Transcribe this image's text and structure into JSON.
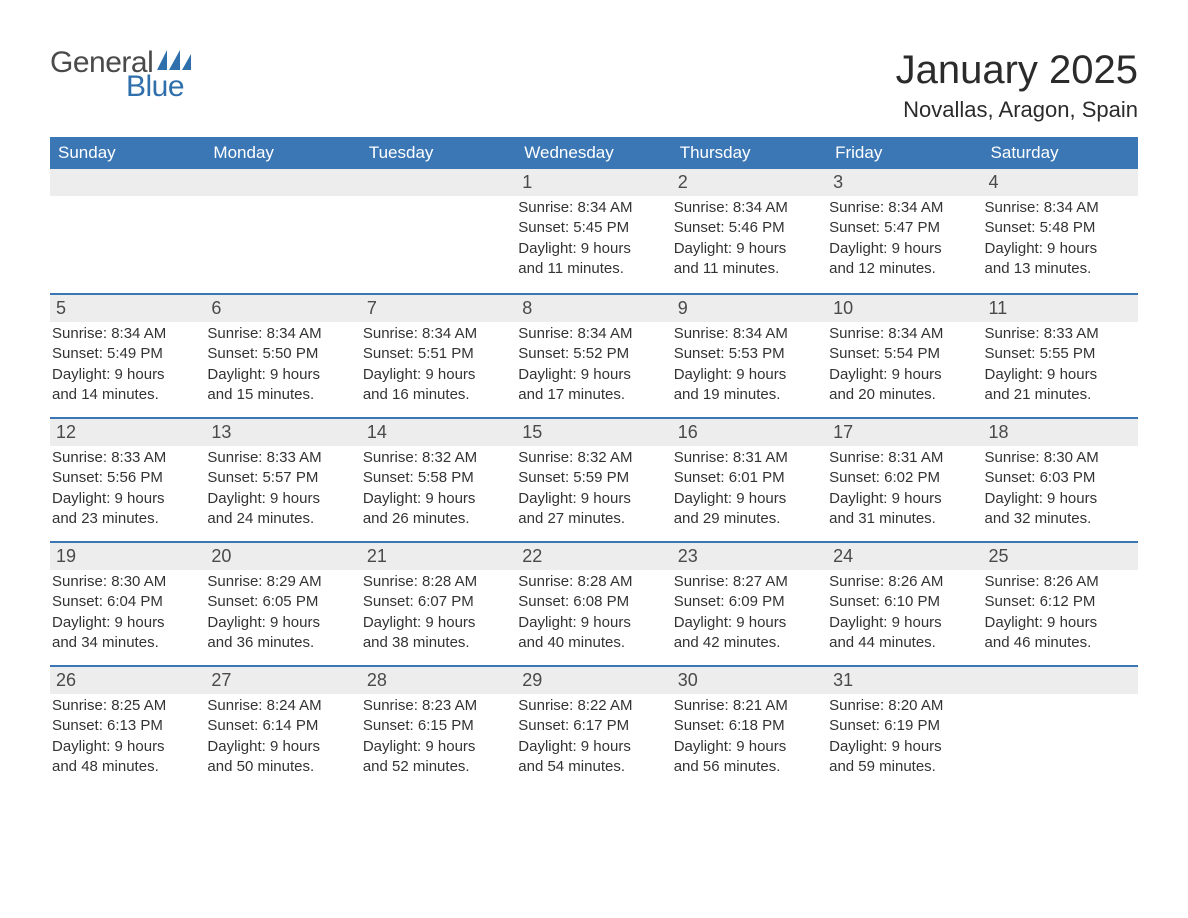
{
  "logo": {
    "general": "General",
    "blue": "Blue",
    "flag_color": "#2f6fab"
  },
  "title": "January 2025",
  "subtitle": "Novallas, Aragon, Spain",
  "colors": {
    "header_bg": "#3b77b5",
    "header_text": "#ffffff",
    "daynum_bg": "#ededed",
    "day_border": "#3b77b5",
    "body_text": "#333333",
    "page_bg": "#ffffff"
  },
  "columns": [
    "Sunday",
    "Monday",
    "Tuesday",
    "Wednesday",
    "Thursday",
    "Friday",
    "Saturday"
  ],
  "weeks": [
    [
      null,
      null,
      null,
      {
        "n": "1",
        "sunrise": "Sunrise: 8:34 AM",
        "sunset": "Sunset: 5:45 PM",
        "day1": "Daylight: 9 hours",
        "day2": "and 11 minutes."
      },
      {
        "n": "2",
        "sunrise": "Sunrise: 8:34 AM",
        "sunset": "Sunset: 5:46 PM",
        "day1": "Daylight: 9 hours",
        "day2": "and 11 minutes."
      },
      {
        "n": "3",
        "sunrise": "Sunrise: 8:34 AM",
        "sunset": "Sunset: 5:47 PM",
        "day1": "Daylight: 9 hours",
        "day2": "and 12 minutes."
      },
      {
        "n": "4",
        "sunrise": "Sunrise: 8:34 AM",
        "sunset": "Sunset: 5:48 PM",
        "day1": "Daylight: 9 hours",
        "day2": "and 13 minutes."
      }
    ],
    [
      {
        "n": "5",
        "sunrise": "Sunrise: 8:34 AM",
        "sunset": "Sunset: 5:49 PM",
        "day1": "Daylight: 9 hours",
        "day2": "and 14 minutes."
      },
      {
        "n": "6",
        "sunrise": "Sunrise: 8:34 AM",
        "sunset": "Sunset: 5:50 PM",
        "day1": "Daylight: 9 hours",
        "day2": "and 15 minutes."
      },
      {
        "n": "7",
        "sunrise": "Sunrise: 8:34 AM",
        "sunset": "Sunset: 5:51 PM",
        "day1": "Daylight: 9 hours",
        "day2": "and 16 minutes."
      },
      {
        "n": "8",
        "sunrise": "Sunrise: 8:34 AM",
        "sunset": "Sunset: 5:52 PM",
        "day1": "Daylight: 9 hours",
        "day2": "and 17 minutes."
      },
      {
        "n": "9",
        "sunrise": "Sunrise: 8:34 AM",
        "sunset": "Sunset: 5:53 PM",
        "day1": "Daylight: 9 hours",
        "day2": "and 19 minutes."
      },
      {
        "n": "10",
        "sunrise": "Sunrise: 8:34 AM",
        "sunset": "Sunset: 5:54 PM",
        "day1": "Daylight: 9 hours",
        "day2": "and 20 minutes."
      },
      {
        "n": "11",
        "sunrise": "Sunrise: 8:33 AM",
        "sunset": "Sunset: 5:55 PM",
        "day1": "Daylight: 9 hours",
        "day2": "and 21 minutes."
      }
    ],
    [
      {
        "n": "12",
        "sunrise": "Sunrise: 8:33 AM",
        "sunset": "Sunset: 5:56 PM",
        "day1": "Daylight: 9 hours",
        "day2": "and 23 minutes."
      },
      {
        "n": "13",
        "sunrise": "Sunrise: 8:33 AM",
        "sunset": "Sunset: 5:57 PM",
        "day1": "Daylight: 9 hours",
        "day2": "and 24 minutes."
      },
      {
        "n": "14",
        "sunrise": "Sunrise: 8:32 AM",
        "sunset": "Sunset: 5:58 PM",
        "day1": "Daylight: 9 hours",
        "day2": "and 26 minutes."
      },
      {
        "n": "15",
        "sunrise": "Sunrise: 8:32 AM",
        "sunset": "Sunset: 5:59 PM",
        "day1": "Daylight: 9 hours",
        "day2": "and 27 minutes."
      },
      {
        "n": "16",
        "sunrise": "Sunrise: 8:31 AM",
        "sunset": "Sunset: 6:01 PM",
        "day1": "Daylight: 9 hours",
        "day2": "and 29 minutes."
      },
      {
        "n": "17",
        "sunrise": "Sunrise: 8:31 AM",
        "sunset": "Sunset: 6:02 PM",
        "day1": "Daylight: 9 hours",
        "day2": "and 31 minutes."
      },
      {
        "n": "18",
        "sunrise": "Sunrise: 8:30 AM",
        "sunset": "Sunset: 6:03 PM",
        "day1": "Daylight: 9 hours",
        "day2": "and 32 minutes."
      }
    ],
    [
      {
        "n": "19",
        "sunrise": "Sunrise: 8:30 AM",
        "sunset": "Sunset: 6:04 PM",
        "day1": "Daylight: 9 hours",
        "day2": "and 34 minutes."
      },
      {
        "n": "20",
        "sunrise": "Sunrise: 8:29 AM",
        "sunset": "Sunset: 6:05 PM",
        "day1": "Daylight: 9 hours",
        "day2": "and 36 minutes."
      },
      {
        "n": "21",
        "sunrise": "Sunrise: 8:28 AM",
        "sunset": "Sunset: 6:07 PM",
        "day1": "Daylight: 9 hours",
        "day2": "and 38 minutes."
      },
      {
        "n": "22",
        "sunrise": "Sunrise: 8:28 AM",
        "sunset": "Sunset: 6:08 PM",
        "day1": "Daylight: 9 hours",
        "day2": "and 40 minutes."
      },
      {
        "n": "23",
        "sunrise": "Sunrise: 8:27 AM",
        "sunset": "Sunset: 6:09 PM",
        "day1": "Daylight: 9 hours",
        "day2": "and 42 minutes."
      },
      {
        "n": "24",
        "sunrise": "Sunrise: 8:26 AM",
        "sunset": "Sunset: 6:10 PM",
        "day1": "Daylight: 9 hours",
        "day2": "and 44 minutes."
      },
      {
        "n": "25",
        "sunrise": "Sunrise: 8:26 AM",
        "sunset": "Sunset: 6:12 PM",
        "day1": "Daylight: 9 hours",
        "day2": "and 46 minutes."
      }
    ],
    [
      {
        "n": "26",
        "sunrise": "Sunrise: 8:25 AM",
        "sunset": "Sunset: 6:13 PM",
        "day1": "Daylight: 9 hours",
        "day2": "and 48 minutes."
      },
      {
        "n": "27",
        "sunrise": "Sunrise: 8:24 AM",
        "sunset": "Sunset: 6:14 PM",
        "day1": "Daylight: 9 hours",
        "day2": "and 50 minutes."
      },
      {
        "n": "28",
        "sunrise": "Sunrise: 8:23 AM",
        "sunset": "Sunset: 6:15 PM",
        "day1": "Daylight: 9 hours",
        "day2": "and 52 minutes."
      },
      {
        "n": "29",
        "sunrise": "Sunrise: 8:22 AM",
        "sunset": "Sunset: 6:17 PM",
        "day1": "Daylight: 9 hours",
        "day2": "and 54 minutes."
      },
      {
        "n": "30",
        "sunrise": "Sunrise: 8:21 AM",
        "sunset": "Sunset: 6:18 PM",
        "day1": "Daylight: 9 hours",
        "day2": "and 56 minutes."
      },
      {
        "n": "31",
        "sunrise": "Sunrise: 8:20 AM",
        "sunset": "Sunset: 6:19 PM",
        "day1": "Daylight: 9 hours",
        "day2": "and 59 minutes."
      },
      null
    ]
  ]
}
